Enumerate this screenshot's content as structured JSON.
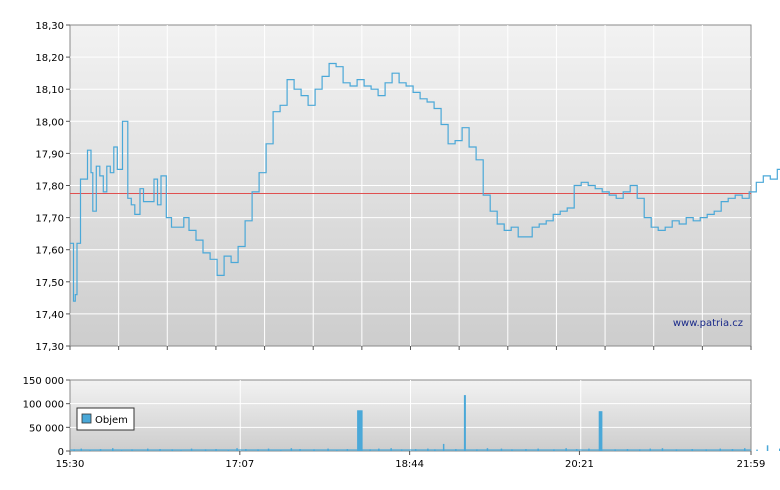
{
  "watermark": "www.patria.cz",
  "chart_data": [
    {
      "type": "line",
      "name_hint": "price",
      "ylim": [
        17.3,
        18.3
      ],
      "y_ticks": [
        "17,30",
        "17,40",
        "17,50",
        "17,60",
        "17,70",
        "17,80",
        "17,90",
        "18,00",
        "18,10",
        "18,20",
        "18,30"
      ],
      "reference_line": 17.775,
      "reference_color": "#e05050",
      "line_color": "#4aa8d8",
      "grid": true,
      "x_minutes": [
        0,
        2,
        3,
        4,
        6,
        8,
        10,
        12,
        13,
        15,
        17,
        19,
        21,
        23,
        25,
        27,
        30,
        33,
        35,
        37,
        40,
        42,
        45,
        48,
        50,
        52,
        55,
        58,
        60,
        62,
        65,
        68,
        72,
        76,
        80,
        84,
        88,
        92,
        96,
        100,
        104,
        108,
        112,
        116,
        120,
        124,
        128,
        132,
        136,
        140,
        144,
        148,
        152,
        156,
        160,
        164,
        168,
        172,
        176,
        180,
        184,
        188,
        192,
        196,
        200,
        204,
        208,
        212,
        216,
        220,
        224,
        228,
        232,
        236,
        240,
        244,
        248,
        252,
        256,
        260,
        264,
        268,
        272,
        276,
        280,
        284,
        288,
        292,
        296,
        300,
        304,
        308,
        312,
        316,
        320,
        324,
        328,
        332,
        336,
        340,
        344,
        348,
        352,
        356,
        360,
        364,
        368,
        372,
        376,
        380,
        384,
        388,
        392,
        396,
        400,
        404,
        408,
        409
      ],
      "values": [
        17.62,
        17.44,
        17.46,
        17.62,
        17.82,
        17.82,
        17.91,
        17.84,
        17.72,
        17.86,
        17.83,
        17.78,
        17.86,
        17.84,
        17.92,
        17.85,
        18.0,
        17.76,
        17.74,
        17.71,
        17.79,
        17.75,
        17.75,
        17.82,
        17.74,
        17.83,
        17.7,
        17.67,
        17.67,
        17.67,
        17.7,
        17.66,
        17.63,
        17.59,
        17.57,
        17.52,
        17.58,
        17.56,
        17.61,
        17.69,
        17.78,
        17.84,
        17.93,
        18.03,
        18.05,
        18.13,
        18.1,
        18.08,
        18.05,
        18.1,
        18.14,
        18.18,
        18.17,
        18.12,
        18.11,
        18.13,
        18.11,
        18.1,
        18.08,
        18.12,
        18.15,
        18.12,
        18.11,
        18.09,
        18.07,
        18.06,
        18.04,
        17.99,
        17.93,
        17.94,
        17.98,
        17.92,
        17.88,
        17.77,
        17.72,
        17.68,
        17.66,
        17.67,
        17.64,
        17.64,
        17.67,
        17.68,
        17.69,
        17.71,
        17.72,
        17.73,
        17.8,
        17.81,
        17.8,
        17.79,
        17.78,
        17.77,
        17.76,
        17.78,
        17.8,
        17.76,
        17.7,
        17.67,
        17.66,
        17.67,
        17.69,
        17.68,
        17.7,
        17.69,
        17.7,
        17.71,
        17.72,
        17.75,
        17.76,
        17.77,
        17.76,
        17.78,
        17.81,
        17.83,
        17.82,
        17.85,
        17.84,
        17.82
      ]
    },
    {
      "type": "bar",
      "ylim": [
        0,
        150000
      ],
      "y_ticks": [
        "0",
        "50 000",
        "100 000",
        "150 000"
      ],
      "x_ticks": [
        "15:30",
        "17:07",
        "18:44",
        "20:21",
        "21:59"
      ],
      "x_tick_minutes": [
        0,
        97,
        194,
        291,
        389
      ],
      "legend": "Objem",
      "legend_position": "middle-left",
      "bar_color": "#4aa8d8",
      "big_bars": [
        {
          "minute": 164,
          "value": 86000
        },
        {
          "minute": 165,
          "value": 86000
        },
        {
          "minute": 166,
          "value": 86000
        },
        {
          "minute": 225,
          "value": 118000
        },
        {
          "minute": 302,
          "value": 84000
        },
        {
          "minute": 303,
          "value": 84000
        }
      ],
      "small_bar_minutes": [
        2,
        6,
        11,
        17,
        24,
        29,
        35,
        44,
        51,
        58,
        63,
        69,
        77,
        83,
        90,
        95,
        100,
        107,
        113,
        120,
        126,
        131,
        139,
        147,
        152,
        158,
        171,
        176,
        183,
        189,
        197,
        204,
        208,
        213,
        220,
        232,
        238,
        246,
        252,
        260,
        267,
        276,
        283,
        289,
        296,
        311,
        318,
        325,
        331,
        338,
        346,
        355,
        363,
        371,
        378,
        385,
        392,
        398,
        405
      ],
      "small_bar_values": [
        3000,
        5000,
        2000,
        4000,
        6000,
        2000,
        3000,
        5000,
        4000,
        3000,
        2000,
        5000,
        3000,
        4000,
        2000,
        6000,
        4000,
        3000,
        5000,
        2000,
        6000,
        4000,
        3000,
        5000,
        2000,
        4000,
        3000,
        5000,
        6000,
        3000,
        4000,
        5000,
        3000,
        15000,
        4000,
        3000,
        6000,
        5000,
        3000,
        4000,
        5000,
        3000,
        6000,
        4000,
        5000,
        3000,
        4000,
        3000,
        5000,
        6000,
        3000,
        4000,
        3000,
        5000,
        4000,
        6000,
        3000,
        12000,
        5000
      ]
    }
  ]
}
